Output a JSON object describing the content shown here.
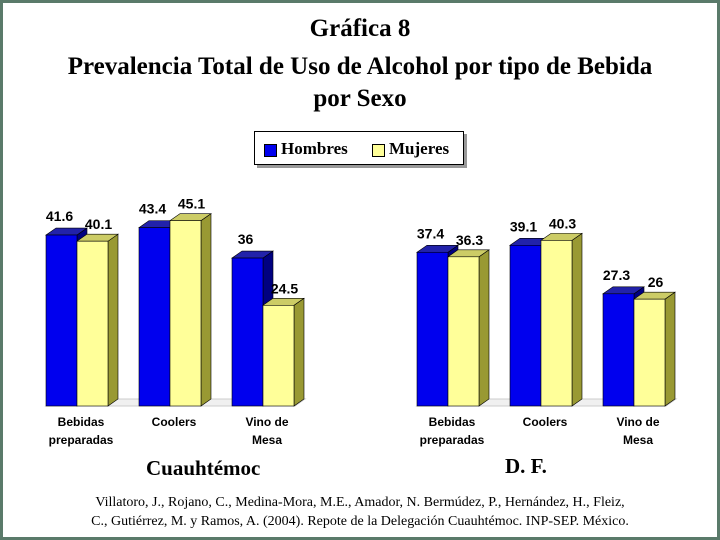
{
  "title": {
    "line1": "Gráfica 8",
    "line2": "Prevalencia Total de Uso de Alcohol por tipo de Bebida",
    "line3": "por Sexo"
  },
  "legend": {
    "hombres": "Hombres",
    "mujeres": "Mujeres"
  },
  "colors": {
    "hombres_front": "#0000ee",
    "hombres_side": "#000080",
    "hombres_top": "#2222aa",
    "mujeres_front": "#ffff99",
    "mujeres_side": "#999933",
    "mujeres_top": "#cccc66",
    "frame": "#5a7a6a"
  },
  "chart_data": [
    {
      "type": "bar",
      "group_label": "Cuauhtémoc",
      "categories": [
        [
          "Bebidas",
          "preparadas"
        ],
        [
          "Coolers"
        ],
        [
          "Vino de",
          "Mesa"
        ]
      ],
      "series": [
        {
          "name": "Hombres",
          "values": [
            41.6,
            43.4,
            36
          ]
        },
        {
          "name": "Mujeres",
          "values": [
            40.1,
            45.1,
            24.5
          ]
        }
      ],
      "value_labels": [
        [
          "41.6",
          "43.4",
          "36"
        ],
        [
          "40.1",
          "45.1",
          "24.5"
        ]
      ]
    },
    {
      "type": "bar",
      "group_label": "D. F.",
      "categories": [
        [
          "Bebidas",
          "preparadas"
        ],
        [
          "Coolers"
        ],
        [
          "Vino de",
          "Mesa"
        ]
      ],
      "series": [
        {
          "name": "Hombres",
          "values": [
            37.4,
            39.1,
            27.3
          ]
        },
        {
          "name": "Mujeres",
          "values": [
            36.3,
            40.3,
            26
          ]
        }
      ],
      "value_labels": [
        [
          "37.4",
          "39.1",
          "27.3"
        ],
        [
          "36.3",
          "40.3",
          "26"
        ]
      ]
    }
  ],
  "source": {
    "line1": "Villatoro, J., Rojano, C., Medina-Mora, M.E., Amador, N. Bermúdez, P., Hernández, H., Fleiz,",
    "line2": "C., Gutiérrez, M. y Ramos, A. (2004). Repote de la Delegación Cuauhtémoc. INP-SEP. México."
  }
}
